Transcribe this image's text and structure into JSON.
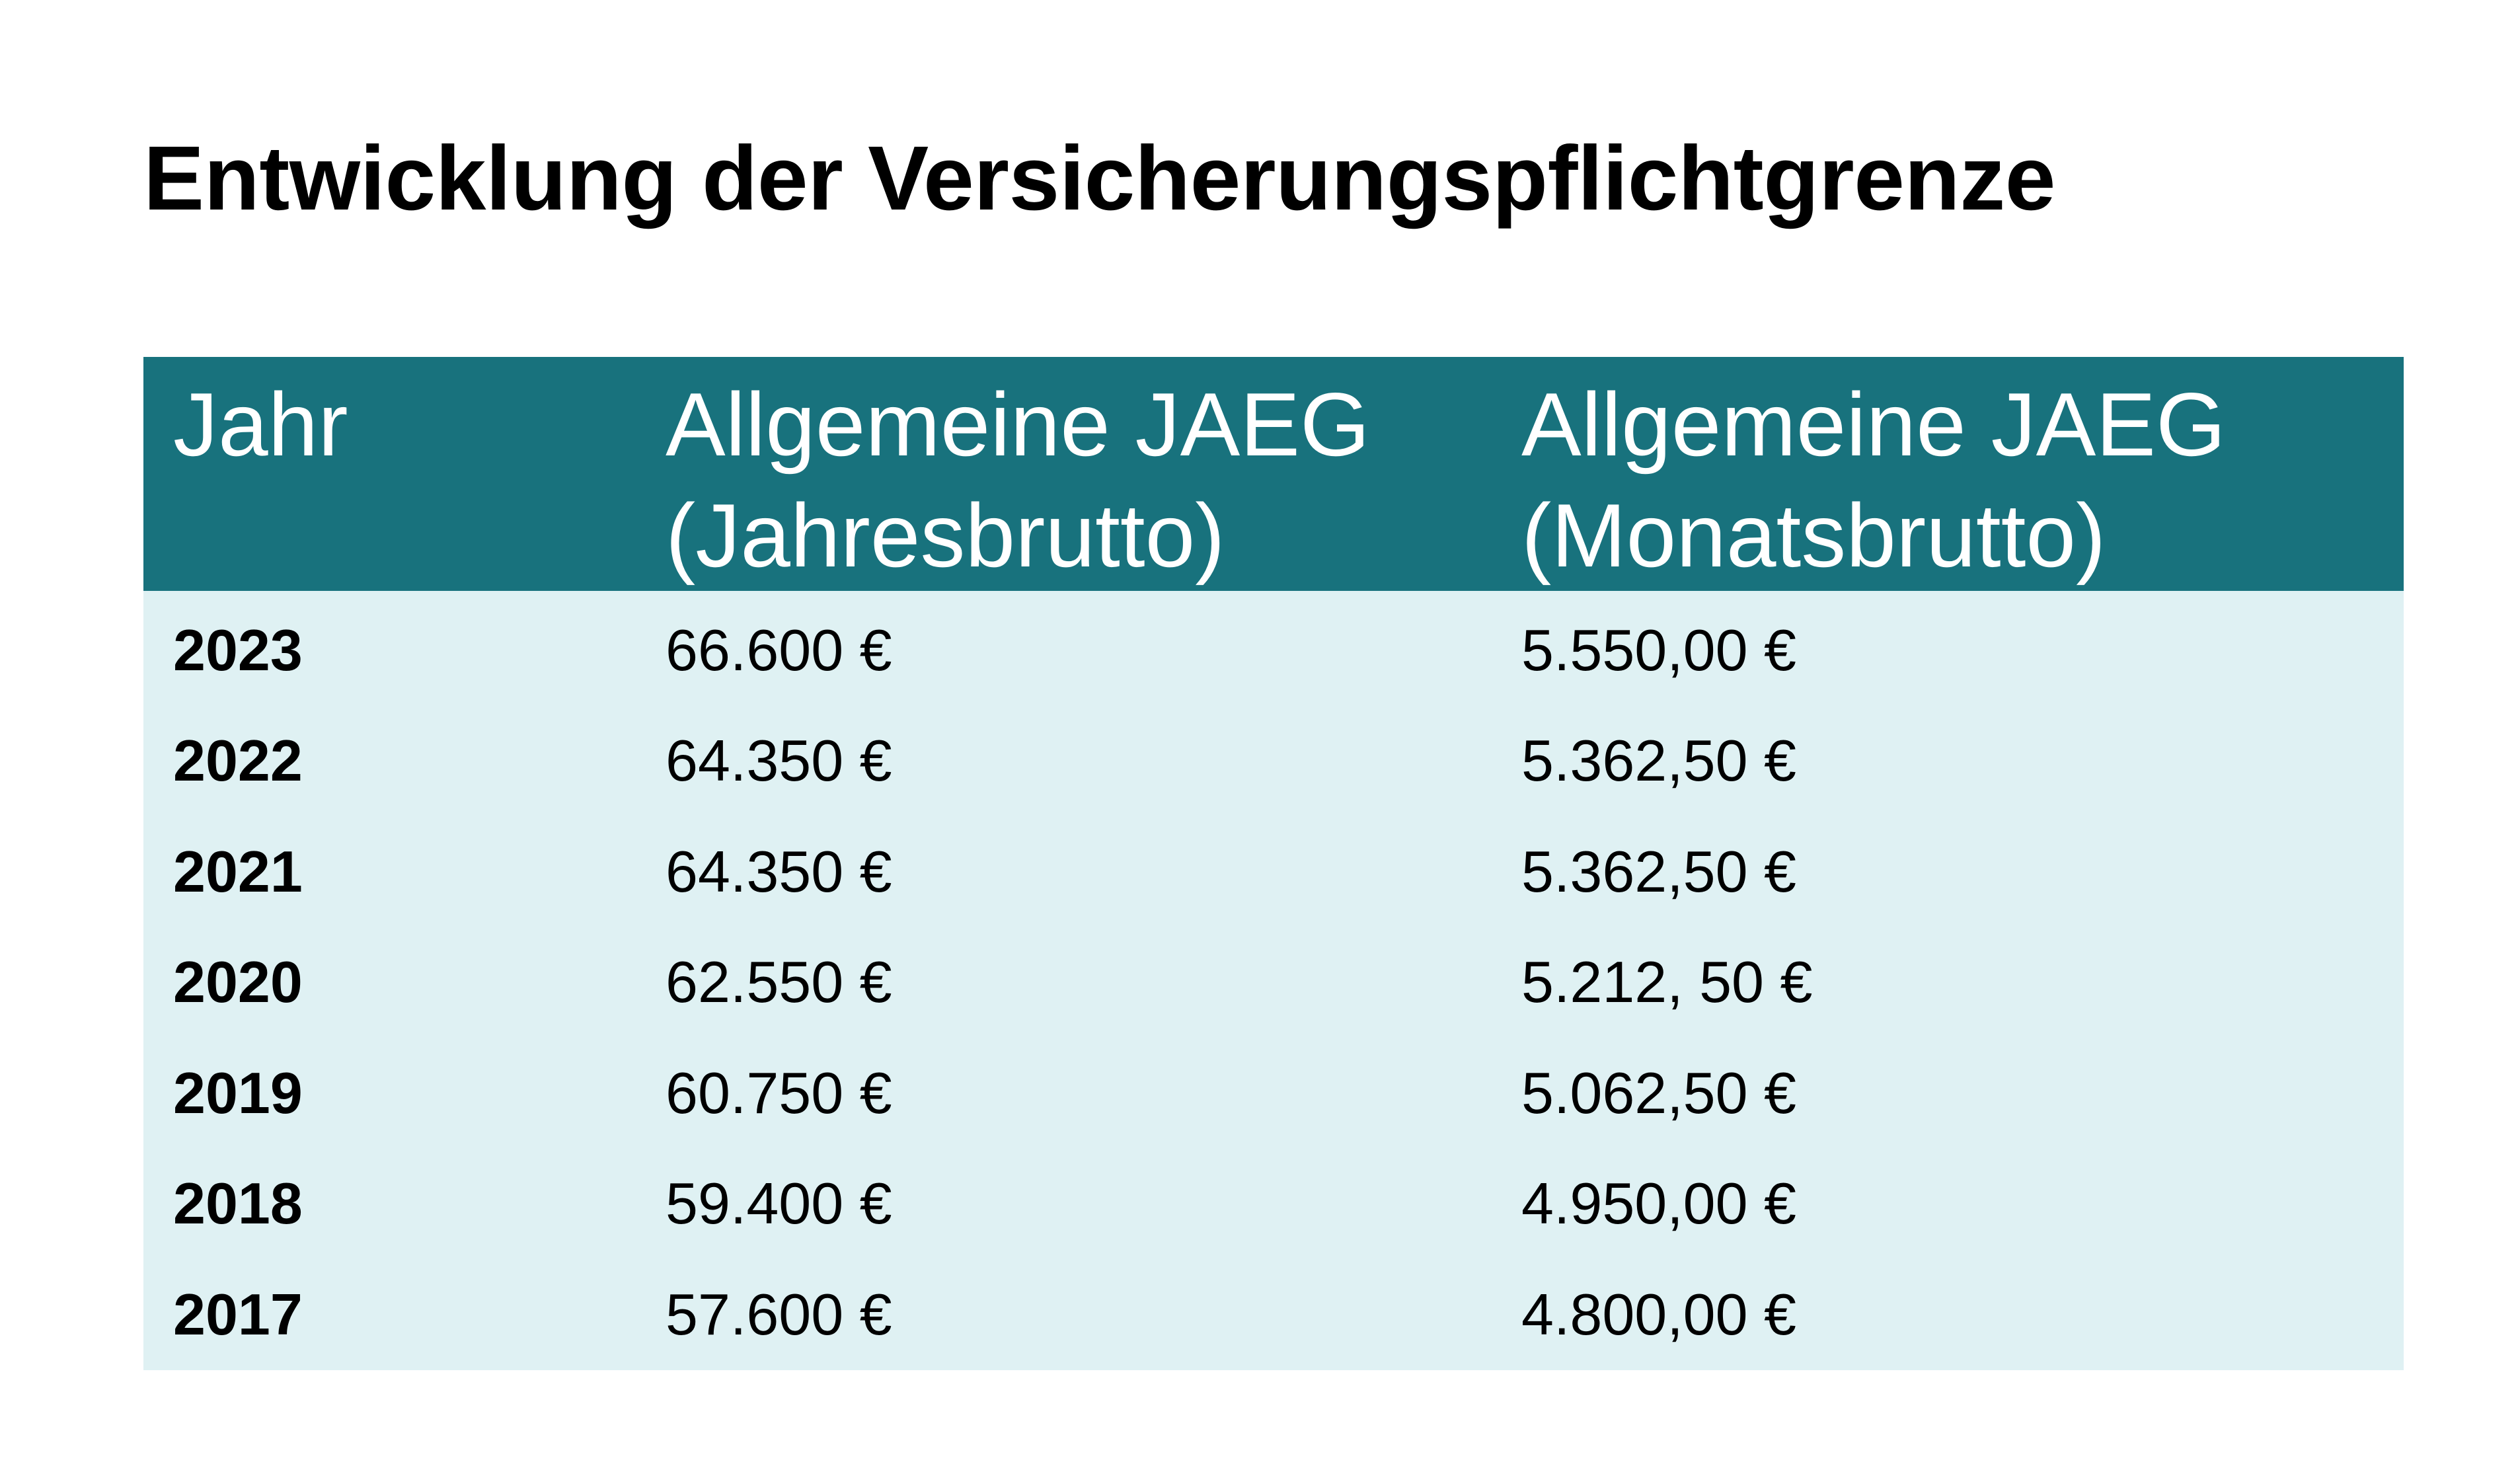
{
  "title": "Entwicklung der Versicherungspflichtgrenze",
  "table": {
    "headers": {
      "col1": "Jahr",
      "col2_line1": "Allgemeine JAEG",
      "col2_line2": "(Jahresbrutto)",
      "col3_line1": "Allgemeine JAEG",
      "col3_line2": "(Monatsbrutto)"
    },
    "rows": [
      {
        "year": "2023",
        "annual": "66.600 €",
        "monthly": "5.550,00 €"
      },
      {
        "year": "2022",
        "annual": "64.350 €",
        "monthly": "5.362,50 €"
      },
      {
        "year": "2021",
        "annual": "64.350 €",
        "monthly": "5.362,50 €"
      },
      {
        "year": "2020",
        "annual": "62.550 €",
        "monthly": "5.212, 50 €"
      },
      {
        "year": "2019",
        "annual": "60.750 €",
        "monthly": "5.062,50 €"
      },
      {
        "year": "2018",
        "annual": "59.400 €",
        "monthly": "4.950,00 €"
      },
      {
        "year": "2017",
        "annual": "57.600 €",
        "monthly": "4.800,00 €"
      }
    ]
  },
  "colors": {
    "header_background": "#18727d",
    "header_text": "#ffffff",
    "body_background": "#dff1f3",
    "text": "#000000"
  }
}
